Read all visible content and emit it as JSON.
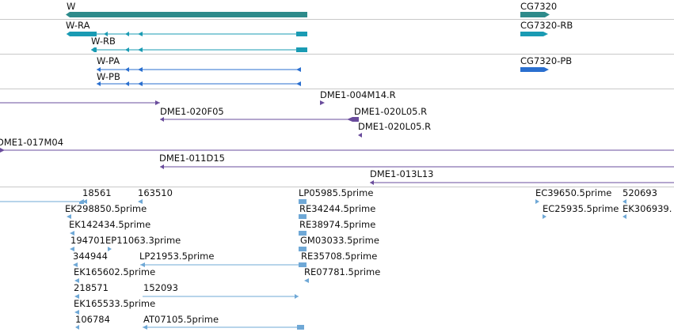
{
  "colors": {
    "gene": "#2e8b8b",
    "transcript_w": "#1a9bb3",
    "transcript_p": "#2a6fcf",
    "clone": "#6a4c9c",
    "est": "#6fa8d6",
    "separator": "#c8c8c8"
  },
  "genes": {
    "w": "W",
    "cg7320": "CG7320"
  },
  "transcripts": {
    "w_ra": "W-RA",
    "w_rb": "W-RB",
    "cg7320_rb": "CG7320-RB",
    "w_pa": "W-PA",
    "w_pb": "W-PB",
    "cg7320_pb": "CG7320-PB"
  },
  "clones": {
    "c004m14": "DME1-004M14.R",
    "c020f05": "DME1-020F05",
    "c020l05a": "DME1-020L05.R",
    "c020l05b": "DME1-020L05.R",
    "c017m04": "DME1-017M04",
    "c011d15": "DME1-011D15",
    "c013l13": "DME1-013L13"
  },
  "ests": [
    "18561",
    "163510",
    "LP05985.5prime",
    "EC39650.5prime",
    "520693",
    "EK298850.5prime",
    "RE34244.5prime",
    "EC25935.5prime",
    "EK306939.",
    "EK142434.5prime",
    "RE38974.5prime",
    "194701",
    "EP11063.3prime",
    "GM03033.5prime",
    "344944",
    "LP21953.5prime",
    "RE35708.5prime",
    "EK165602.5prime",
    "RE07781.5prime",
    "218571",
    "152093",
    "EK165533.5prime",
    "106784",
    "AT07105.5prime"
  ]
}
